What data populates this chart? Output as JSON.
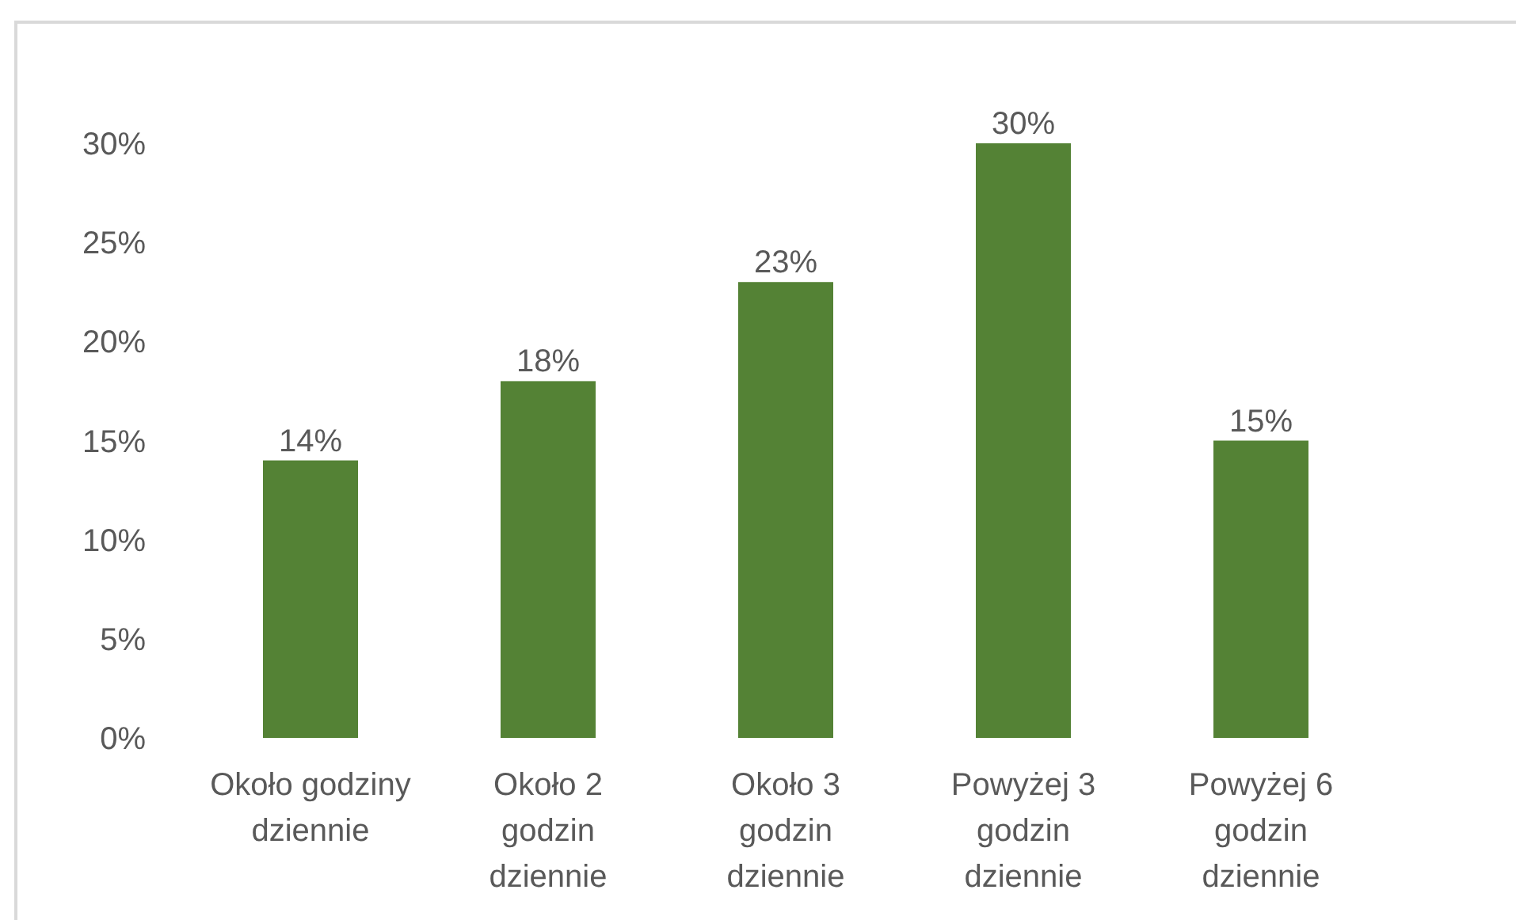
{
  "chart_data": {
    "type": "bar",
    "categories": [
      "Około godziny dziennie",
      "Około 2 godzin dziennie",
      "Około 3 godzin dziennie",
      "Powyżej 3 godzin dziennie",
      "Powyżej 6 godzin dziennie"
    ],
    "values": [
      14,
      18,
      23,
      30,
      15
    ],
    "color": "#548235",
    "value_labels": [
      "14%",
      "18%",
      "23%",
      "30%",
      "15%"
    ],
    "ylim": [
      0,
      30
    ],
    "yticks": [
      {
        "value": 0,
        "label": "0%"
      },
      {
        "value": 5,
        "label": "5%"
      },
      {
        "value": 10,
        "label": "10%"
      },
      {
        "value": 15,
        "label": "15%"
      },
      {
        "value": 20,
        "label": "20%"
      },
      {
        "value": 25,
        "label": "25%"
      },
      {
        "value": 30,
        "label": "30%"
      }
    ]
  }
}
